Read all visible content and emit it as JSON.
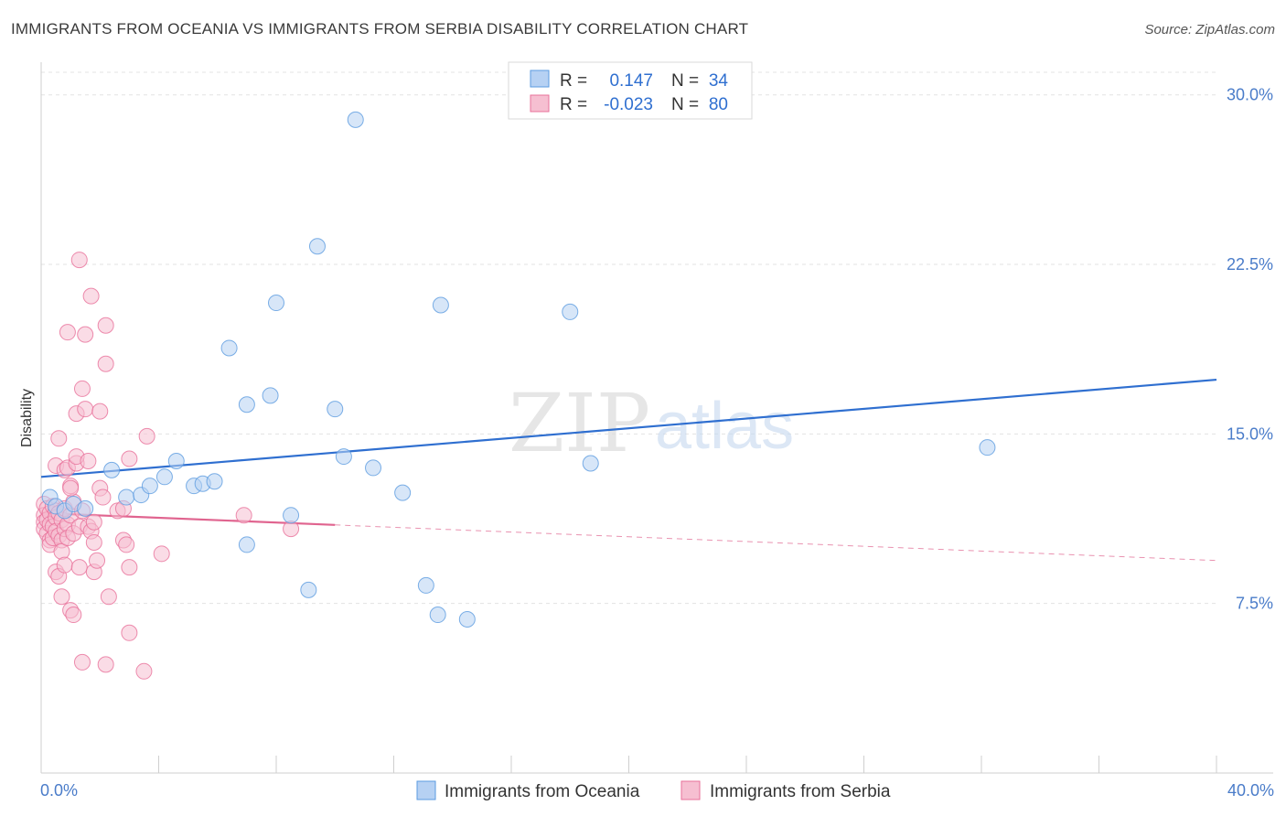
{
  "header": {
    "title": "IMMIGRANTS FROM OCEANIA VS IMMIGRANTS FROM SERBIA DISABILITY CORRELATION CHART",
    "source": "Source: ZipAtlas.com"
  },
  "watermark": "ZIPatlas",
  "colors": {
    "oceania": "#5b9be0",
    "oceania_fill": "#b6d1f3",
    "serbia": "#e8719a",
    "serbia_fill": "#f6bfd1",
    "trend_oceania": "#2f6fd0",
    "trend_serbia": "#e0648f",
    "grid": "#e3e3e3",
    "axis_text": "#4a7cc9"
  },
  "chart_data": {
    "type": "scatter",
    "title": "IMMIGRANTS FROM OCEANIA VS IMMIGRANTS FROM SERBIA DISABILITY CORRELATION CHART",
    "xlabel": "",
    "ylabel": "Disability",
    "xlim": [
      0,
      40
    ],
    "ylim": [
      0,
      31
    ],
    "x_tick_labels": [
      "0.0%",
      "40.0%"
    ],
    "y_ticks": [
      7.5,
      15.0,
      22.5,
      30.0
    ],
    "y_tick_labels": [
      "7.5%",
      "15.0%",
      "22.5%",
      "30.0%"
    ],
    "grid": true,
    "legend": {
      "position": "top-center",
      "rows": [
        {
          "r_label": "R =",
          "r_value": "0.147",
          "n_label": "N =",
          "n_value": "34"
        },
        {
          "r_label": "R =",
          "r_value": "-0.023",
          "n_label": "N =",
          "n_value": "80"
        }
      ]
    },
    "bottom_legend": [
      "Immigrants from Oceania",
      "Immigrants from Serbia"
    ],
    "series": [
      {
        "name": "Immigrants from Oceania",
        "points": [
          [
            0.3,
            12.2
          ],
          [
            0.5,
            11.8
          ],
          [
            0.8,
            11.6
          ],
          [
            1.1,
            11.9
          ],
          [
            1.5,
            11.7
          ],
          [
            2.4,
            13.4
          ],
          [
            2.9,
            12.2
          ],
          [
            3.4,
            12.3
          ],
          [
            3.7,
            12.7
          ],
          [
            4.2,
            13.1
          ],
          [
            4.6,
            13.8
          ],
          [
            5.2,
            12.7
          ],
          [
            5.5,
            12.8
          ],
          [
            5.9,
            12.9
          ],
          [
            6.4,
            18.8
          ],
          [
            7.0,
            16.3
          ],
          [
            7.0,
            10.1
          ],
          [
            7.8,
            16.7
          ],
          [
            8.0,
            20.8
          ],
          [
            8.5,
            11.4
          ],
          [
            9.1,
            8.1
          ],
          [
            9.4,
            23.3
          ],
          [
            10.0,
            16.1
          ],
          [
            10.3,
            14.0
          ],
          [
            10.7,
            28.9
          ],
          [
            11.3,
            13.5
          ],
          [
            12.3,
            12.4
          ],
          [
            13.1,
            8.3
          ],
          [
            13.5,
            7.0
          ],
          [
            13.6,
            20.7
          ],
          [
            14.5,
            6.8
          ],
          [
            18.0,
            20.4
          ],
          [
            18.7,
            13.7
          ],
          [
            32.2,
            14.4
          ]
        ],
        "trend": {
          "x": [
            0,
            40
          ],
          "y": [
            13.1,
            17.4
          ],
          "dashed_from": null
        }
      },
      {
        "name": "Immigrants from Serbia",
        "points": [
          [
            0.1,
            11.9
          ],
          [
            0.1,
            11.4
          ],
          [
            0.1,
            11.1
          ],
          [
            0.1,
            10.8
          ],
          [
            0.2,
            11.7
          ],
          [
            0.2,
            11.2
          ],
          [
            0.2,
            10.6
          ],
          [
            0.3,
            10.3
          ],
          [
            0.3,
            11.5
          ],
          [
            0.3,
            11.0
          ],
          [
            0.3,
            10.1
          ],
          [
            0.4,
            11.8
          ],
          [
            0.4,
            10.9
          ],
          [
            0.4,
            10.4
          ],
          [
            0.5,
            11.6
          ],
          [
            0.5,
            11.3
          ],
          [
            0.5,
            10.7
          ],
          [
            0.5,
            8.9
          ],
          [
            0.5,
            13.6
          ],
          [
            0.6,
            11.5
          ],
          [
            0.6,
            10.5
          ],
          [
            0.6,
            14.8
          ],
          [
            0.6,
            8.7
          ],
          [
            0.7,
            11.2
          ],
          [
            0.7,
            10.3
          ],
          [
            0.7,
            9.8
          ],
          [
            0.7,
            7.8
          ],
          [
            0.8,
            11.7
          ],
          [
            0.8,
            10.8
          ],
          [
            0.8,
            9.2
          ],
          [
            0.8,
            13.4
          ],
          [
            0.9,
            11.0
          ],
          [
            0.9,
            10.4
          ],
          [
            0.9,
            13.5
          ],
          [
            0.9,
            19.5
          ],
          [
            1.0,
            12.7
          ],
          [
            1.0,
            11.4
          ],
          [
            1.0,
            7.2
          ],
          [
            1.1,
            10.6
          ],
          [
            1.1,
            12.0
          ],
          [
            1.1,
            7.0
          ],
          [
            1.2,
            13.7
          ],
          [
            1.2,
            14.0
          ],
          [
            1.2,
            15.9
          ],
          [
            1.3,
            22.7
          ],
          [
            1.3,
            10.9
          ],
          [
            1.3,
            9.1
          ],
          [
            1.4,
            17.0
          ],
          [
            1.4,
            11.6
          ],
          [
            1.4,
            4.9
          ],
          [
            1.5,
            16.1
          ],
          [
            1.5,
            19.4
          ],
          [
            1.6,
            10.9
          ],
          [
            1.6,
            13.8
          ],
          [
            1.7,
            10.7
          ],
          [
            1.7,
            21.1
          ],
          [
            1.8,
            10.2
          ],
          [
            1.8,
            11.1
          ],
          [
            1.8,
            8.9
          ],
          [
            1.9,
            9.4
          ],
          [
            2.0,
            12.6
          ],
          [
            2.0,
            16.0
          ],
          [
            2.1,
            12.2
          ],
          [
            2.2,
            19.8
          ],
          [
            2.2,
            4.8
          ],
          [
            2.2,
            18.1
          ],
          [
            2.3,
            7.8
          ],
          [
            2.6,
            11.6
          ],
          [
            2.8,
            11.7
          ],
          [
            2.8,
            10.3
          ],
          [
            2.9,
            10.1
          ],
          [
            3.0,
            6.2
          ],
          [
            3.0,
            9.1
          ],
          [
            3.0,
            13.9
          ],
          [
            3.5,
            4.5
          ],
          [
            3.6,
            14.9
          ],
          [
            4.1,
            9.7
          ],
          [
            6.9,
            11.4
          ],
          [
            8.5,
            10.8
          ],
          [
            1.0,
            12.6
          ]
        ],
        "trend": {
          "x": [
            0,
            40
          ],
          "y": [
            11.5,
            9.4
          ],
          "dashed_from": 10
        }
      }
    ]
  }
}
